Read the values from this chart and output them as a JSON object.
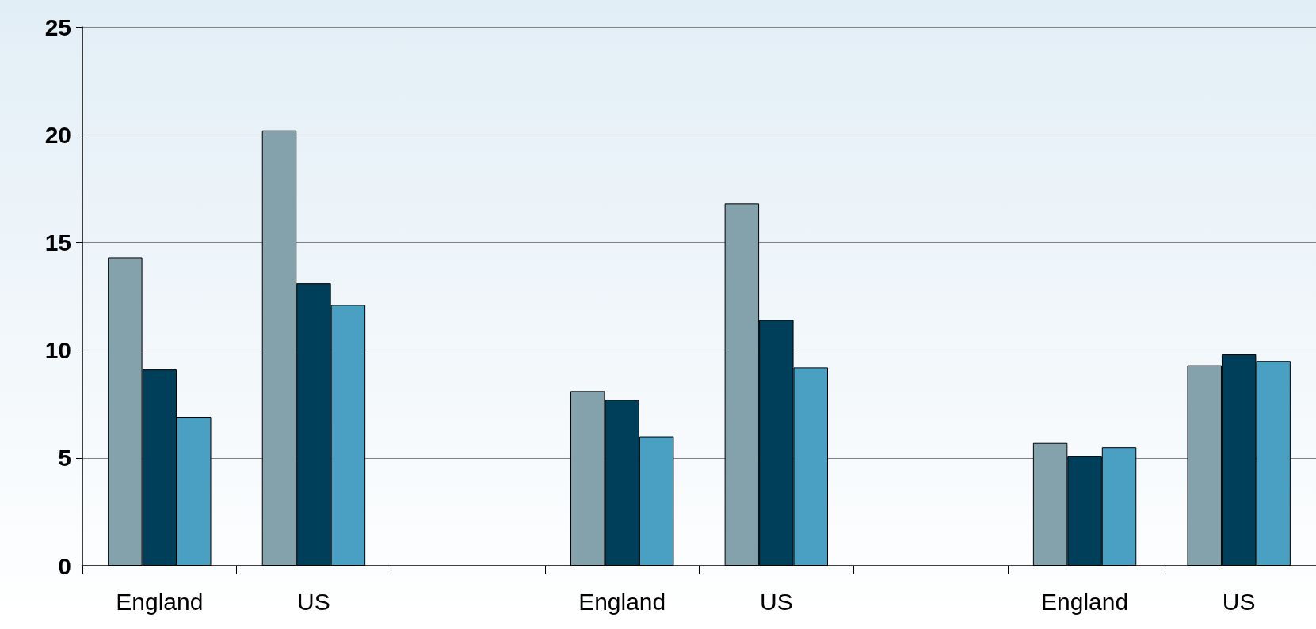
{
  "chart_data": {
    "type": "bar",
    "categories": [
      "England",
      "US",
      null,
      "England",
      "US",
      null,
      "England",
      "US"
    ],
    "series": [
      {
        "color": "#84a2ac",
        "values": [
          14.3,
          20.2,
          null,
          8.1,
          16.8,
          null,
          5.7,
          9.3
        ]
      },
      {
        "color": "#003f5a",
        "values": [
          9.1,
          13.1,
          null,
          7.7,
          11.4,
          null,
          5.1,
          9.8
        ]
      },
      {
        "color": "#4aa0c2",
        "values": [
          6.9,
          12.1,
          null,
          6.0,
          9.2,
          null,
          5.5,
          9.5
        ]
      }
    ],
    "ylim": [
      0,
      25
    ],
    "yticks": [
      0,
      5,
      10,
      15,
      20,
      25
    ],
    "grid": "y"
  }
}
